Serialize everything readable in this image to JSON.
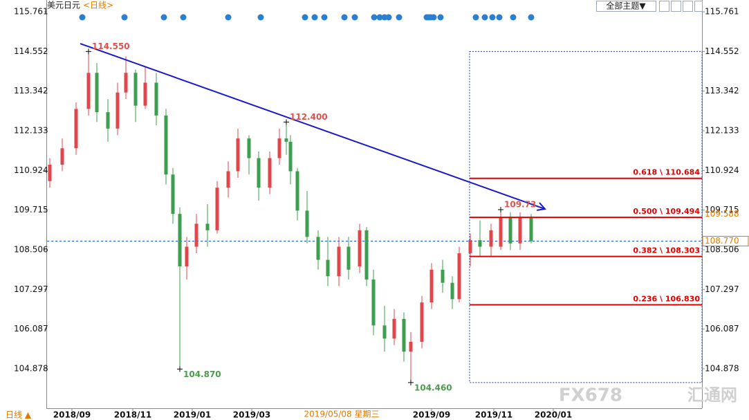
{
  "chart_data": {
    "type": "candlestick",
    "title": "美元日元",
    "period": "<日线>",
    "up_color": "#e0474c",
    "down_color": "#3d9e4f",
    "xlim": [
      0,
      473.5
    ],
    "ylim": [
      103.676,
      116.12
    ],
    "yticks": [
      {
        "value": 115.761,
        "label": "115.761"
      },
      {
        "value": 114.552,
        "label": "114.552"
      },
      {
        "value": 113.342,
        "label": "113.342"
      },
      {
        "value": 112.133,
        "label": "112.133"
      },
      {
        "value": 110.924,
        "label": "110.924"
      },
      {
        "value": 109.715,
        "label": "109.715"
      },
      {
        "value": 108.506,
        "label": "108.506"
      },
      {
        "value": 107.297,
        "label": "107.297"
      },
      {
        "value": 106.087,
        "label": "106.087"
      },
      {
        "value": 104.878,
        "label": "104.878"
      }
    ],
    "xticks": [
      {
        "value": 18,
        "label": "2018/09"
      },
      {
        "value": 62,
        "label": "2018/11"
      },
      {
        "value": 105,
        "label": "2019/01"
      },
      {
        "value": 148,
        "label": "2019/03"
      },
      {
        "value": 278,
        "label": "2019/09"
      },
      {
        "value": 323,
        "label": "2019/11"
      },
      {
        "value": 366,
        "label": "2020/01"
      }
    ],
    "x": [
      2,
      11,
      21,
      30,
      36,
      44,
      51,
      57,
      64,
      71,
      79,
      86,
      91,
      96,
      101,
      108,
      116,
      123,
      131,
      138,
      146,
      153,
      161,
      168,
      173,
      176,
      181,
      188,
      196,
      203,
      211,
      218,
      226,
      231,
      236,
      244,
      251,
      258,
      263,
      271,
      278,
      286,
      293,
      298,
      306,
      313,
      321,
      328,
      335,
      342,
      350
    ],
    "open": [
      110.6,
      111.1,
      111.6,
      112.8,
      113.9,
      112.7,
      112.2,
      113.3,
      113.9,
      112.9,
      113.6,
      112.6,
      110.8,
      109.6,
      108.0,
      108.6,
      109.3,
      109.1,
      110.4,
      110.9,
      111.9,
      111.3,
      110.4,
      111.3,
      111.9,
      111.8,
      110.9,
      109.7,
      108.9,
      108.2,
      107.7,
      108.6,
      108.0,
      109.1,
      107.6,
      106.2,
      105.8,
      106.4,
      105.4,
      105.7,
      106.9,
      107.9,
      107.5,
      107.0,
      108.4,
      108.8,
      108.6,
      108.6,
      109.5,
      108.7,
      109.5
    ],
    "high": [
      111.3,
      111.9,
      113.0,
      114.55,
      114.2,
      113.1,
      113.6,
      114.4,
      114.0,
      114.1,
      113.9,
      112.8,
      111.0,
      109.8,
      108.9,
      109.6,
      109.9,
      110.6,
      111.2,
      112.2,
      112.0,
      111.5,
      111.5,
      112.2,
      112.4,
      112.0,
      111.0,
      110.3,
      109.1,
      108.9,
      108.9,
      108.9,
      109.3,
      109.2,
      107.9,
      106.8,
      106.7,
      106.6,
      106.0,
      107.1,
      108.1,
      108.2,
      107.7,
      108.6,
      109.0,
      109.4,
      109.3,
      109.73,
      109.65,
      109.65,
      109.6
    ],
    "low": [
      110.4,
      110.9,
      111.4,
      112.6,
      112.4,
      111.8,
      112.0,
      113.1,
      112.4,
      112.8,
      112.3,
      110.5,
      109.3,
      104.87,
      107.6,
      108.4,
      108.6,
      109.0,
      110.1,
      110.7,
      110.8,
      110.0,
      110.2,
      111.1,
      111.4,
      110.5,
      109.4,
      108.7,
      107.9,
      107.4,
      107.4,
      107.6,
      107.8,
      107.4,
      105.9,
      105.4,
      105.6,
      105.1,
      104.46,
      105.5,
      106.7,
      107.2,
      106.7,
      106.9,
      108.0,
      108.3,
      108.3,
      108.5,
      108.5,
      108.5,
      108.7
    ],
    "close": [
      111.1,
      111.6,
      112.8,
      113.9,
      112.7,
      112.2,
      113.3,
      113.9,
      112.9,
      113.6,
      112.6,
      110.8,
      109.6,
      108.0,
      108.6,
      109.3,
      109.1,
      110.4,
      110.9,
      111.9,
      111.3,
      110.4,
      111.3,
      111.9,
      111.8,
      110.9,
      109.7,
      108.9,
      108.2,
      107.7,
      108.6,
      107.9,
      109.1,
      107.6,
      106.2,
      105.8,
      106.4,
      105.4,
      105.7,
      106.9,
      107.9,
      107.5,
      107.0,
      108.4,
      108.8,
      108.6,
      109.1,
      109.5,
      108.7,
      109.5,
      108.77
    ],
    "annotations": [
      {
        "x": 30,
        "value": 114.55,
        "label": "114.550",
        "color": "#d9534f",
        "place": "above"
      },
      {
        "x": 173,
        "value": 112.4,
        "label": "112.400",
        "color": "#d9534f",
        "place": "above"
      },
      {
        "x": 328,
        "value": 109.73,
        "label": "109.73",
        "color": "#d9534f",
        "place": "above"
      },
      {
        "x": 96,
        "value": 104.87,
        "label": "104.870",
        "color": "#4e9a4e",
        "place": "below"
      },
      {
        "x": 263,
        "value": 104.46,
        "label": "104.460",
        "color": "#4e9a4e",
        "place": "below"
      }
    ],
    "trendline": {
      "x": [
        24,
        360
      ],
      "values": [
        114.79,
        109.75
      ],
      "color": "#1a1acc"
    },
    "fibonacci": {
      "color": "#e00000",
      "x": [
        305.5,
        473.5
      ],
      "levels": [
        {
          "value": 110.684,
          "label": "0.618 \\ 110.684"
        },
        {
          "value": 109.494,
          "label": "0.500 \\ 109.494"
        },
        {
          "value": 108.303,
          "label": "0.382 \\ 108.303"
        },
        {
          "value": 106.83,
          "label": "0.236 \\ 106.830"
        }
      ],
      "box": {
        "x": [
          305.5,
          473.5
        ],
        "values": [
          114.55,
          104.46
        ],
        "color": "#2233aa"
      }
    },
    "crosshair": {
      "value": 108.77,
      "label": "108.770",
      "color": "#1a55cc"
    },
    "price_label": {
      "value": 109.588,
      "label": "109.588"
    },
    "date_label": {
      "value": 213,
      "label": "2019/05/08 星期三"
    },
    "events": {
      "color": "#2a7fd0",
      "x": [
        25.5,
        56,
        84.5,
        98.5,
        131,
        154.5,
        186.5,
        193.5,
        200.5,
        215,
        222.5,
        236.5,
        240.5,
        244,
        247,
        254.5,
        274.5,
        276,
        277.5,
        279.5,
        284.5,
        310,
        316.5,
        322,
        327,
        337,
        350
      ]
    },
    "menu": "全部主题▼",
    "period_button": "日线 ▲",
    "watermark": [
      "FX678",
      "汇通网"
    ]
  }
}
